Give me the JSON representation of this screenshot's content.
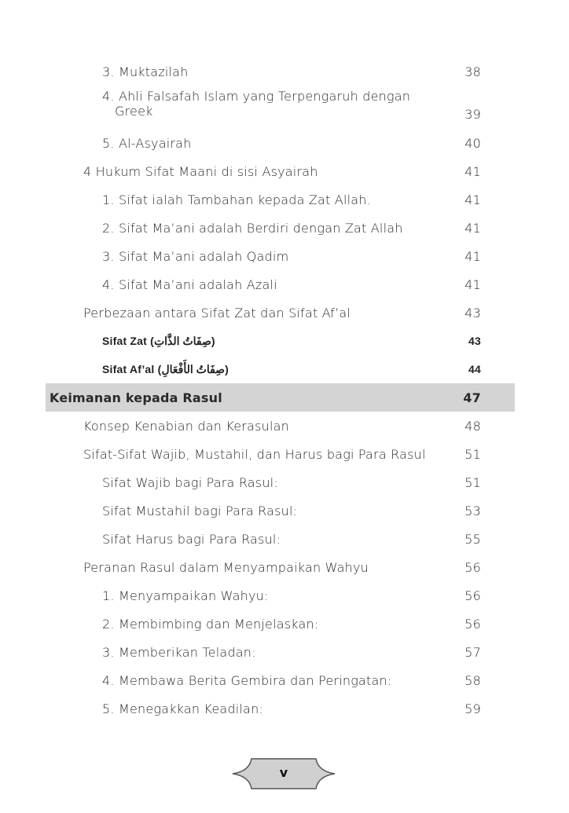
{
  "toc": [
    {
      "level": 2,
      "title": "3. Muktazilah",
      "page": "38"
    },
    {
      "level": 2,
      "title": "4. Ahli Falsafah Islam yang Terpengaruh dengan",
      "title_cont": "Greek",
      "page": "39"
    },
    {
      "level": 2,
      "title": "5. Al-Asyairah",
      "page": "40"
    },
    {
      "level": 1,
      "title": "4 Hukum Sifat Maani di sisi Asyairah",
      "page": "41"
    },
    {
      "level": 2,
      "title": "1. Sifat ialah Tambahan kepada Zat Allah.",
      "page": "41"
    },
    {
      "level": 2,
      "title": "2. Sifat Ma’ani adalah Berdiri dengan Zat Allah",
      "page": "41"
    },
    {
      "level": 2,
      "title": "3. Sifat Ma’ani adalah Qadim",
      "page": "41"
    },
    {
      "level": 2,
      "title": "4. Sifat Ma’ani adalah Azali",
      "page": "41"
    },
    {
      "level": 1,
      "title": "Perbezaan antara Sifat Zat dan Sifat Af’al",
      "page": "43"
    },
    {
      "level": 2,
      "style": "sans",
      "title": "Sifat Zat (صِفَاتُ الذَّاتِ)",
      "page": "43"
    },
    {
      "level": 2,
      "style": "sans",
      "title": "Sifat Af’al (صِفَاتُ الأَفْعَالِ)",
      "page": "44"
    },
    {
      "level": 0,
      "title": "Keimanan kepada Rasul",
      "page": "47"
    },
    {
      "level": 1,
      "title": "Konsep Kenabian dan Kerasulan",
      "page": "48"
    },
    {
      "level": 1,
      "title": "Sifat-Sifat Wajib, Mustahil, dan Harus bagi Para Rasul",
      "page": "51"
    },
    {
      "level": 2,
      "title": "Sifat Wajib bagi Para Rasul:",
      "page": "51"
    },
    {
      "level": 2,
      "title": "Sifat Mustahil bagi Para Rasul:",
      "page": "53"
    },
    {
      "level": 2,
      "title": "Sifat Harus bagi Para Rasul:",
      "page": "55"
    },
    {
      "level": 1,
      "title": "Peranan Rasul dalam Menyampaikan Wahyu",
      "page": "56"
    },
    {
      "level": 2,
      "title": "1. Menyampaikan Wahyu:",
      "page": "56"
    },
    {
      "level": 2,
      "title": "2. Membimbing dan Menjelaskan:",
      "page": "56"
    },
    {
      "level": 2,
      "title": "3. Memberikan Teladan:",
      "page": "57"
    },
    {
      "level": 2,
      "title": "4. Membawa Berita Gembira dan Peringatan:",
      "page": "58"
    },
    {
      "level": 2,
      "title": "5. Menegakkan Keadilan:",
      "page": "59"
    }
  ],
  "footer": {
    "page_number": "v",
    "badge_color": "#d0d0d0"
  }
}
